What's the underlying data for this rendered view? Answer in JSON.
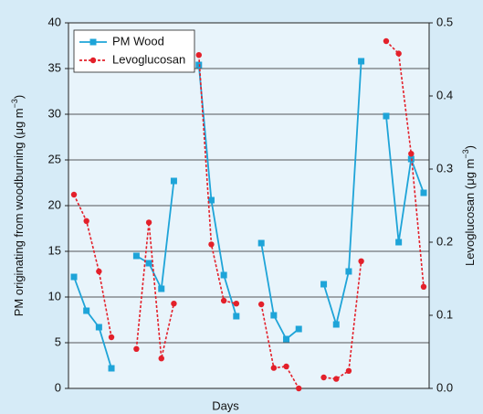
{
  "chart_data": {
    "type": "line",
    "x_label": "Days",
    "y_label": {
      "text": "PM originating from woodburning (μg m",
      "sup": "−3",
      "end": ")"
    },
    "y2_label": {
      "text": "Levoglucosan (μg m",
      "sup": "−3",
      "end": ")"
    },
    "categories": [
      null,
      null,
      null,
      null,
      null,
      null,
      null,
      null,
      null,
      null,
      null,
      null,
      null,
      null,
      null,
      null,
      null,
      null,
      null,
      null,
      null,
      null,
      null,
      null,
      null,
      null,
      null,
      null,
      null
    ],
    "ylim": [
      0,
      40
    ],
    "yticks": [
      0,
      5,
      10,
      15,
      20,
      25,
      30,
      35,
      40
    ],
    "y2lim": [
      0,
      0.5
    ],
    "y2ticks": [
      {
        "value": 0,
        "label": "0.0"
      },
      0.1,
      0.2,
      0.3,
      0.4,
      0.5
    ],
    "grid": true,
    "legend": "upper left",
    "series": [
      {
        "name": "PM Wood",
        "color": "#1ea4d8",
        "marker": "square",
        "dashed": false,
        "values": [
          12.2,
          8.5,
          6.7,
          2.2,
          null,
          14.5,
          13.7,
          10.9,
          22.7,
          null,
          35.4,
          20.6,
          12.4,
          7.9,
          null,
          15.9,
          8.0,
          5.4,
          6.5,
          null,
          11.4,
          7.0,
          12.8,
          35.8,
          null,
          29.8,
          16.0,
          25.1,
          21.4
        ]
      },
      {
        "name": "Levoglucosan",
        "color": "#e3202a",
        "marker": "circle",
        "dashed": true,
        "axis": "y2",
        "values": [
          0.265,
          0.229,
          0.16,
          0.07,
          null,
          0.054,
          0.227,
          0.041,
          0.116,
          null,
          0.456,
          0.197,
          0.12,
          0.116,
          null,
          0.115,
          0.028,
          0.03,
          0.0,
          null,
          0.015,
          0.013,
          0.024,
          0.174,
          null,
          0.475,
          0.458,
          0.321,
          0.139
        ]
      }
    ]
  }
}
